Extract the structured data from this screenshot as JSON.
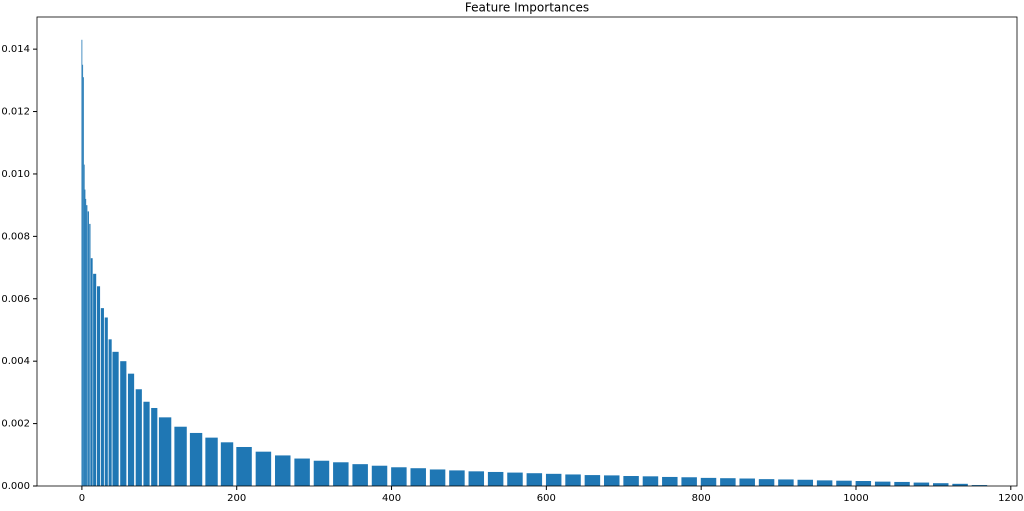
{
  "chart_data": {
    "type": "bar",
    "title": "Feature Importances",
    "x": [
      0,
      1,
      2,
      3,
      4,
      5,
      6,
      8,
      10,
      12,
      15,
      20,
      25,
      30,
      35,
      40,
      50,
      60,
      70,
      80,
      90,
      100,
      120,
      140,
      160,
      180,
      200,
      225,
      250,
      275,
      300,
      325,
      350,
      375,
      400,
      425,
      450,
      475,
      500,
      525,
      550,
      575,
      600,
      625,
      650,
      675,
      700,
      725,
      750,
      775,
      800,
      825,
      850,
      875,
      900,
      925,
      950,
      975,
      1000,
      1025,
      1050,
      1075,
      1100,
      1125,
      1150
    ],
    "values": [
      0.0143,
      0.0135,
      0.0131,
      0.0103,
      0.0095,
      0.0092,
      0.009,
      0.0088,
      0.0084,
      0.0073,
      0.0068,
      0.0064,
      0.0057,
      0.0054,
      0.0047,
      0.0043,
      0.004,
      0.0036,
      0.0031,
      0.0027,
      0.0025,
      0.0022,
      0.0019,
      0.0017,
      0.00155,
      0.0014,
      0.00125,
      0.0011,
      0.00098,
      0.00088,
      0.00081,
      0.00076,
      0.0007,
      0.00065,
      0.0006,
      0.00057,
      0.00053,
      0.0005,
      0.00047,
      0.00045,
      0.00043,
      0.00041,
      0.00039,
      0.00037,
      0.00035,
      0.00034,
      0.00032,
      0.00031,
      0.00029,
      0.00028,
      0.00026,
      0.00025,
      0.00024,
      0.00022,
      0.00021,
      0.0002,
      0.00018,
      0.00017,
      0.00016,
      0.00014,
      0.00013,
      0.00011,
      9e-05,
      7e-05,
      3e-05
    ],
    "color": "#1f77b4",
    "xlim": [
      -58,
      1208
    ],
    "xticks": [
      0,
      200,
      400,
      600,
      800,
      1000,
      1200
    ],
    "ylim": [
      0,
      0.01503
    ],
    "yticks": [
      {
        "value": 0,
        "label": "0.000"
      },
      {
        "value": 0.002,
        "label": "0.002"
      },
      {
        "value": 0.004,
        "label": "0.004"
      },
      {
        "value": 0.006,
        "label": "0.006"
      },
      {
        "value": 0.008,
        "label": "0.008"
      },
      {
        "value": 0.01,
        "label": "0.010"
      },
      {
        "value": 0.012,
        "label": "0.012"
      },
      {
        "value": 0.014,
        "label": "0.014"
      }
    ],
    "grid": false
  }
}
